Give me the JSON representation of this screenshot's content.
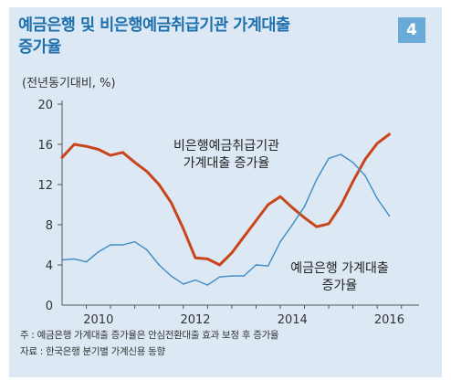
{
  "figure": {
    "title_line1": "예금은행 및 비은행예금취급기관 가계대출",
    "title_line2": "증가율",
    "badge": "4"
  },
  "footnotes": {
    "note": "주 : 예금은행 가계대출 증가율은 안심전환대출 효과 보정 후 증가율",
    "source": "자료 : 한국은행 분기별 가계신용 동향"
  },
  "colors": {
    "panel_bg": "#dce9f4",
    "title": "#1d6fae",
    "nonbank_series": "#c8451b",
    "bank_series": "#3e8bc6",
    "axis": "#555555"
  },
  "chart_data": {
    "type": "line",
    "title": "",
    "ylabel": "(전년동기대비, %)",
    "xlabel": "",
    "ylim": [
      0,
      20
    ],
    "yticks": [
      "0",
      "4",
      "8",
      "12",
      "16",
      "20"
    ],
    "xlim": [
      2009.5,
      2016.75
    ],
    "xticks": [
      {
        "value": 2010,
        "label": "2010"
      },
      {
        "value": 2012,
        "label": "2012"
      },
      {
        "value": 2014,
        "label": "2014"
      },
      {
        "value": 2016,
        "label": "2016"
      }
    ],
    "grid": false,
    "series": [
      {
        "name": "비은행예금취급기관 가계대출 증가율",
        "label_lines": [
          "비은행예금취급기관",
          "가계대출 증가율"
        ],
        "x": [
          2009.5,
          2009.75,
          2010.0,
          2010.25,
          2010.5,
          2010.75,
          2011.0,
          2011.25,
          2011.5,
          2011.75,
          2012.0,
          2012.25,
          2012.5,
          2012.75,
          2013.0,
          2013.25,
          2013.5,
          2013.75,
          2014.0,
          2014.25,
          2014.5,
          2014.75,
          2015.0,
          2015.25,
          2015.5,
          2015.75,
          2016.0,
          2016.25,
          2016.5
        ],
        "values": [
          14.7,
          16.0,
          15.8,
          15.5,
          14.9,
          15.2,
          14.2,
          13.3,
          12.0,
          10.2,
          7.6,
          4.7,
          4.6,
          4.0,
          5.2,
          6.8,
          8.4,
          10.0,
          10.8,
          9.7,
          8.7,
          7.8,
          8.1,
          9.9,
          12.3,
          14.5,
          16.1,
          17.0,
          null
        ]
      },
      {
        "name": "예금은행 가계대출 증가율",
        "label_lines": [
          "예금은행 가계대출",
          "증가율"
        ],
        "x": [
          2009.5,
          2009.75,
          2010.0,
          2010.25,
          2010.5,
          2010.75,
          2011.0,
          2011.25,
          2011.5,
          2011.75,
          2012.0,
          2012.25,
          2012.5,
          2012.75,
          2013.0,
          2013.25,
          2013.5,
          2013.75,
          2014.0,
          2014.25,
          2014.5,
          2014.75,
          2015.0,
          2015.25,
          2015.5,
          2015.75,
          2016.0,
          2016.25,
          2016.5
        ],
        "values": [
          4.5,
          4.6,
          4.3,
          5.3,
          6.0,
          6.0,
          6.3,
          5.5,
          4.0,
          2.9,
          2.1,
          2.5,
          2.0,
          2.8,
          2.9,
          2.9,
          4.0,
          3.9,
          6.3,
          8.0,
          9.8,
          12.5,
          14.6,
          15.0,
          14.2,
          12.9,
          10.6,
          8.9,
          null
        ]
      }
    ]
  }
}
